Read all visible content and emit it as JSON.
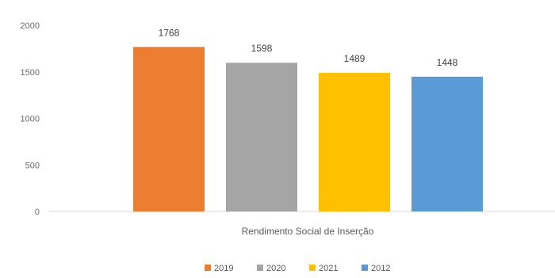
{
  "chart_data": {
    "type": "bar",
    "categories": [
      "Rendimento Social de Inserção"
    ],
    "series": [
      {
        "name": "2019",
        "values": [
          1768
        ],
        "color": "#ED7D31"
      },
      {
        "name": "2020",
        "values": [
          1598
        ],
        "color": "#A5A5A5"
      },
      {
        "name": "2021",
        "values": [
          1489
        ],
        "color": "#FFC000"
      },
      {
        "name": "2012",
        "values": [
          1448
        ],
        "color": "#5B9BD5"
      }
    ],
    "value_labels": [
      "1768",
      "1598",
      "1489",
      "1448"
    ],
    "y_ticks": [
      "0",
      "500",
      "1000",
      "1500",
      "2000"
    ],
    "ylim": [
      0,
      2000
    ],
    "grid": false,
    "legend_position": "bottom"
  }
}
